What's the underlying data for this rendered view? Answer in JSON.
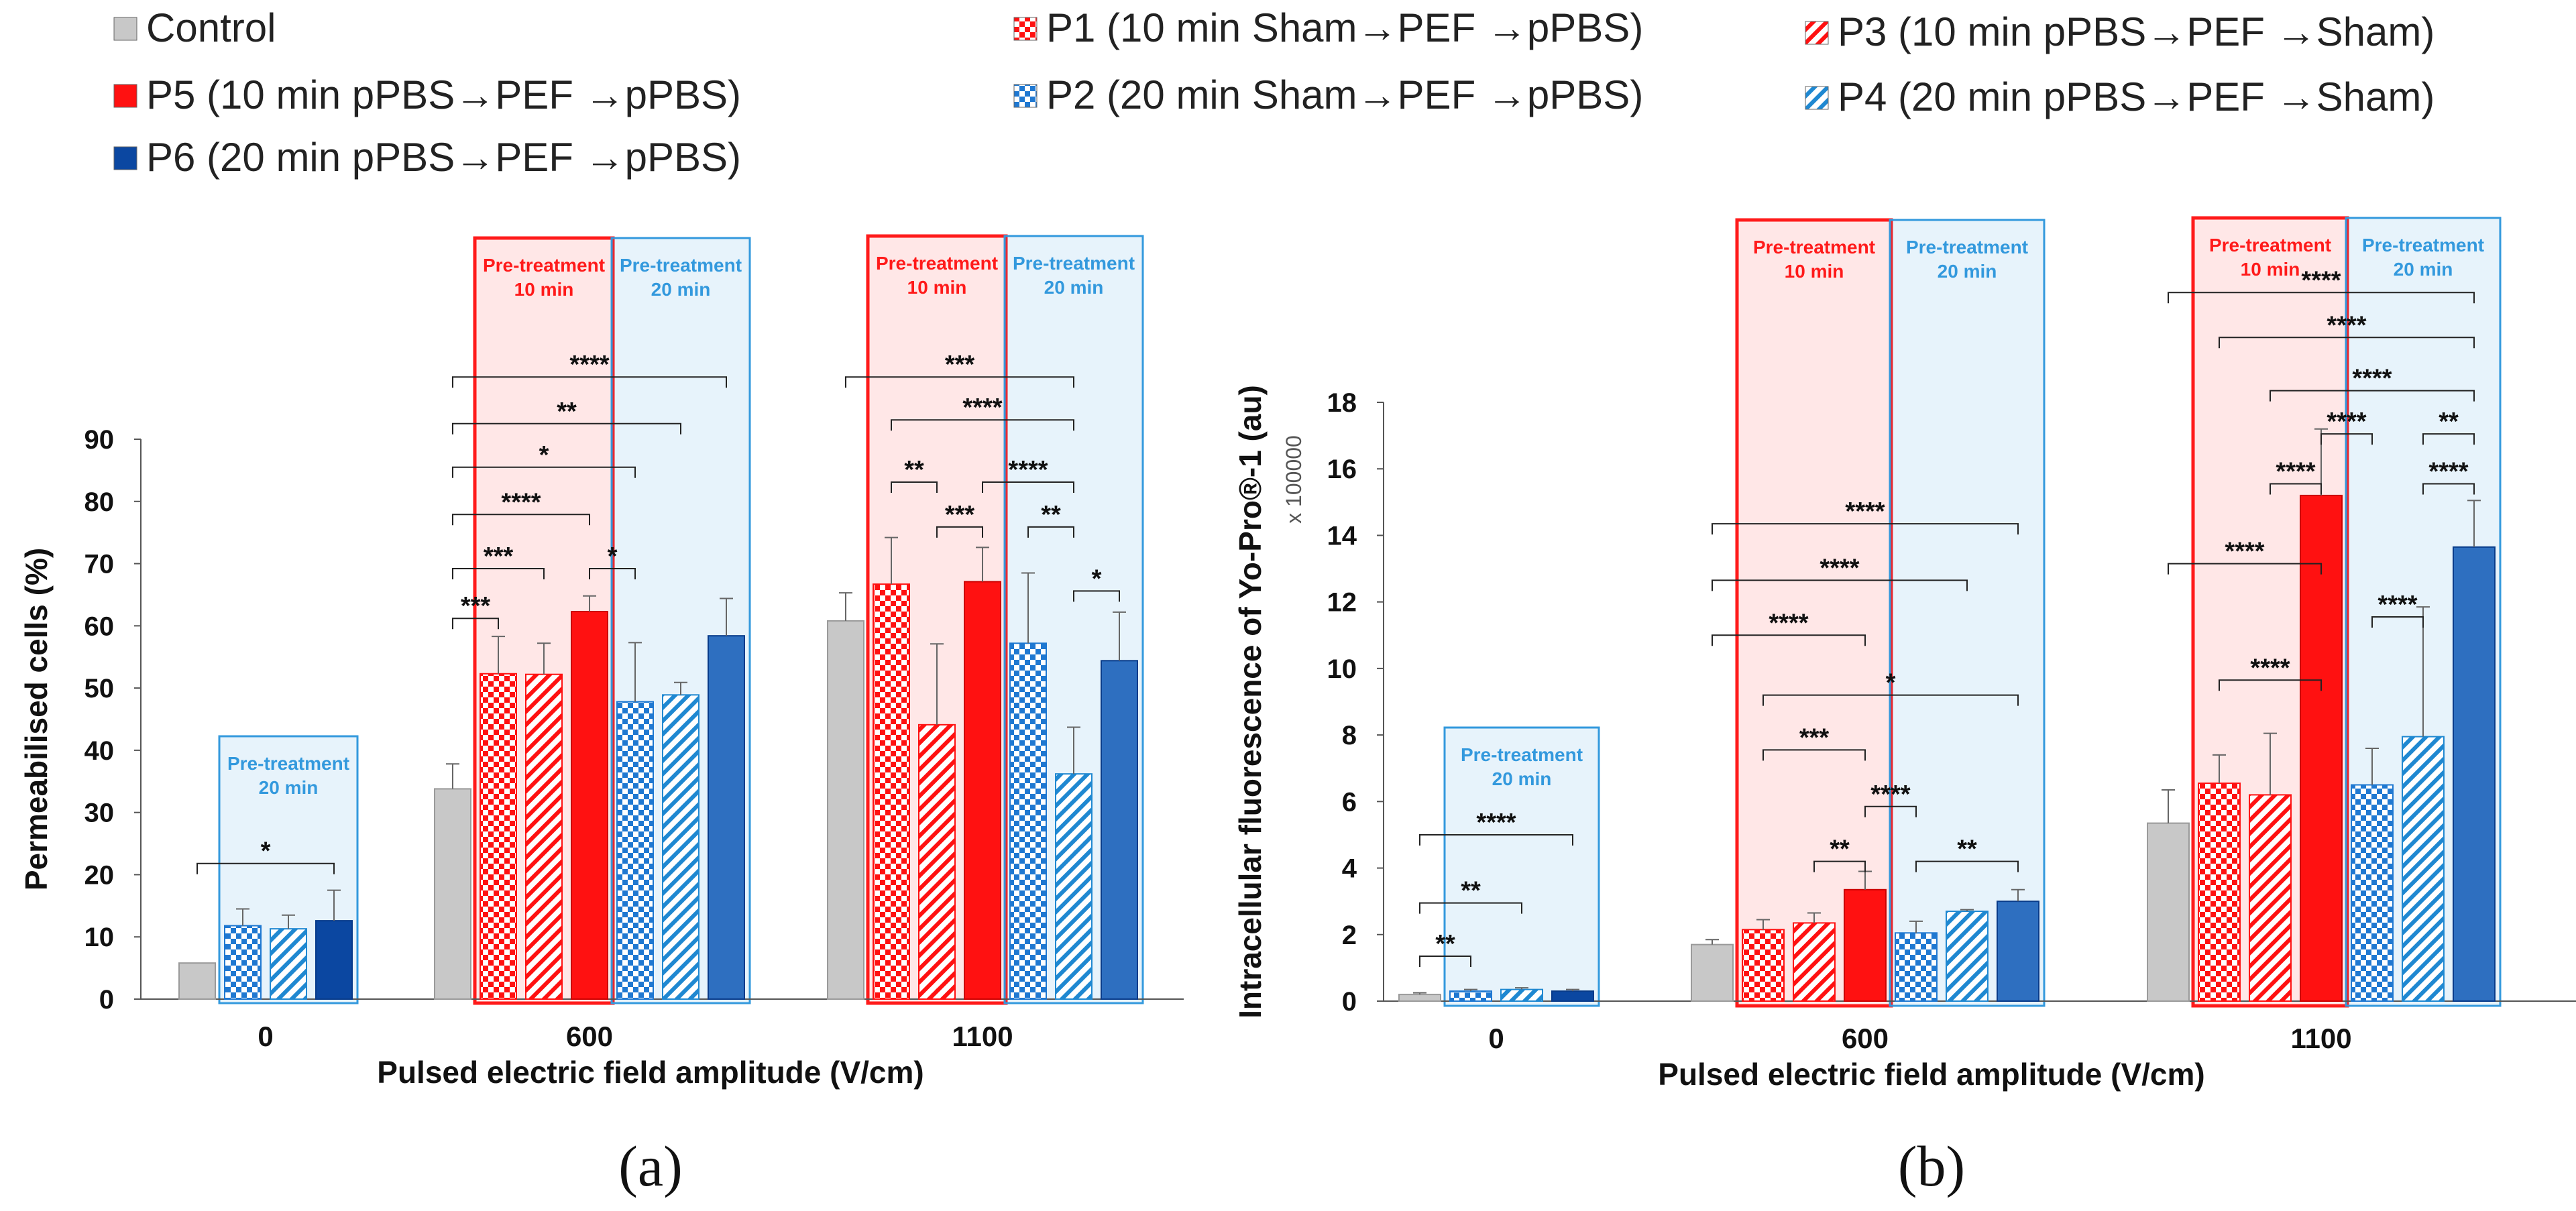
{
  "legend": [
    {
      "name": "Control",
      "color": "#c8c8c8",
      "pattern": "solid"
    },
    {
      "name": "P5 (10 min pPBS→PEF →pPBS)",
      "color": "#ff1111",
      "pattern": "solid"
    },
    {
      "name": "P6 (20 min pPBS→PEF →pPBS)",
      "color": "#0b47a1",
      "pattern": "solid"
    },
    {
      "name": "P1 (10 min Sham→PEF →pPBS)",
      "color": "#ff1111",
      "pattern": "checker"
    },
    {
      "name": "P2 (20 min Sham→PEF →pPBS)",
      "color": "#1f78d1",
      "pattern": "checker"
    },
    {
      "name": "P3 (10 min pPBS→PEF →Sham)",
      "color": "#ff1111",
      "pattern": "hatch"
    },
    {
      "name": "P4 (20 min pPBS→PEF →Sham)",
      "color": "#1f88d1",
      "pattern": "hatch"
    }
  ],
  "pretreatment": {
    "line1": "Pre-treatment",
    "min10": "10 min",
    "min20": "20 min",
    "color10": "#ff1a1a",
    "color20": "#3399dd"
  },
  "chart_data": [
    {
      "type": "bar",
      "panel_label": "(a)",
      "ylabel": "Permeabilised cells (%)",
      "xlabel": "Pulsed electric field amplitude (V/cm)",
      "ylim": [
        0,
        90
      ],
      "yticks": [
        0,
        10,
        20,
        30,
        40,
        50,
        60,
        70,
        80,
        90
      ],
      "scale_note": "",
      "groups": [
        {
          "category": "0",
          "bars": [
            {
              "series": "Control",
              "value": 5.8,
              "err": 0
            },
            {
              "series": "P2",
              "value": 11.8,
              "err": 2.7
            },
            {
              "series": "P4",
              "value": 11.3,
              "err": 2.2
            },
            {
              "series": "P6",
              "value": 12.6,
              "err": 4.9
            }
          ],
          "boxes": [
            {
              "minutes": "20",
              "from": 1,
              "to": 3
            }
          ]
        },
        {
          "category": "600",
          "bars": [
            {
              "series": "Control",
              "value": 33.8,
              "err": 4.0
            },
            {
              "series": "P1",
              "value": 52.3,
              "err": 6.0
            },
            {
              "series": "P3",
              "value": 52.2,
              "err": 5.0
            },
            {
              "series": "P5",
              "value": 62.3,
              "err": 2.5
            },
            {
              "series": "P2",
              "value": 47.8,
              "err": 9.5
            },
            {
              "series": "P4",
              "value": 48.9,
              "err": 2.0
            },
            {
              "series": "P6",
              "value": 58.4,
              "err": 6.0
            }
          ],
          "boxes": [
            {
              "minutes": "10",
              "from": 1,
              "to": 3
            },
            {
              "minutes": "20",
              "from": 4,
              "to": 6
            }
          ]
        },
        {
          "category": "1100",
          "bars": [
            {
              "series": "Control",
              "value": 60.8,
              "err": 4.5
            },
            {
              "series": "P1",
              "value": 66.7,
              "err": 7.5
            },
            {
              "series": "P3",
              "value": 44.1,
              "err": 13.0
            },
            {
              "series": "P5",
              "value": 67.1,
              "err": 5.5
            },
            {
              "series": "P2",
              "value": 57.2,
              "err": 11.3
            },
            {
              "series": "P4",
              "value": 36.2,
              "err": 7.5
            },
            {
              "series": "P6",
              "value": 54.4,
              "err": 7.8
            }
          ],
          "boxes": [
            {
              "minutes": "10",
              "from": 1,
              "to": 3
            },
            {
              "minutes": "20",
              "from": 4,
              "to": 6
            }
          ]
        }
      ],
      "significance": [
        {
          "group": 0,
          "from": 0,
          "to": 3,
          "y": 21.8,
          "label": "*"
        },
        {
          "group": 1,
          "from": 0,
          "to": 1,
          "y": 61.2,
          "label": "***"
        },
        {
          "group": 1,
          "from": 0,
          "to": 2,
          "y": 69.2,
          "label": "***"
        },
        {
          "group": 1,
          "from": 0,
          "to": 3,
          "y": 77.9,
          "label": "****"
        },
        {
          "group": 1,
          "from": 0,
          "to": 4,
          "y": 85.5,
          "label": "*"
        },
        {
          "group": 1,
          "from": 0,
          "to": 5,
          "y": 92.5,
          "label": "**"
        },
        {
          "group": 1,
          "from": 0,
          "to": 6,
          "y": 100.0,
          "label": "****"
        },
        {
          "group": 1,
          "from": 3,
          "to": 4,
          "y": 69.2,
          "label": "*"
        },
        {
          "group": 2,
          "from": 0,
          "to": 5,
          "y": 100.0,
          "label": "***"
        },
        {
          "group": 2,
          "from": 1,
          "to": 5,
          "y": 93.1,
          "label": "****"
        },
        {
          "group": 2,
          "from": 1,
          "to": 2,
          "y": 83.1,
          "label": "**"
        },
        {
          "group": 2,
          "from": 2,
          "to": 3,
          "y": 75.9,
          "label": "***"
        },
        {
          "group": 2,
          "from": 3,
          "to": 5,
          "y": 83.1,
          "label": "****"
        },
        {
          "group": 2,
          "from": 4,
          "to": 5,
          "y": 75.9,
          "label": "**"
        },
        {
          "group": 2,
          "from": 5,
          "to": 6,
          "y": 65.6,
          "label": "*"
        }
      ]
    },
    {
      "type": "bar",
      "panel_label": "(b)",
      "ylabel": "Intracellular fluorescence of Yo-Pro®-1 (au)",
      "xlabel": "Pulsed electric field amplitude (V/cm)",
      "ylim": [
        0,
        18
      ],
      "yticks": [
        0,
        2,
        4,
        6,
        8,
        10,
        12,
        14,
        16,
        18
      ],
      "scale_note": "x 100000",
      "groups": [
        {
          "category": "0",
          "bars": [
            {
              "series": "Control",
              "value": 0.2,
              "err": 0.05
            },
            {
              "series": "P2",
              "value": 0.3,
              "err": 0.05
            },
            {
              "series": "P4",
              "value": 0.35,
              "err": 0.05
            },
            {
              "series": "P6",
              "value": 0.3,
              "err": 0.05
            }
          ],
          "boxes": [
            {
              "minutes": "20",
              "from": 1,
              "to": 3
            }
          ]
        },
        {
          "category": "600",
          "bars": [
            {
              "series": "Control",
              "value": 1.7,
              "err": 0.15
            },
            {
              "series": "P1",
              "value": 2.15,
              "err": 0.3
            },
            {
              "series": "P3",
              "value": 2.35,
              "err": 0.3
            },
            {
              "series": "P5",
              "value": 3.35,
              "err": 0.55
            },
            {
              "series": "P2",
              "value": 2.05,
              "err": 0.35
            },
            {
              "series": "P4",
              "value": 2.7,
              "err": 0.05
            },
            {
              "series": "P6",
              "value": 3.0,
              "err": 0.35
            }
          ],
          "boxes": [
            {
              "minutes": "10",
              "from": 1,
              "to": 3
            },
            {
              "minutes": "20",
              "from": 4,
              "to": 6
            }
          ]
        },
        {
          "category": "1100",
          "bars": [
            {
              "series": "Control",
              "value": 5.35,
              "err": 1.0
            },
            {
              "series": "P1",
              "value": 6.55,
              "err": 0.85
            },
            {
              "series": "P3",
              "value": 6.2,
              "err": 1.85
            },
            {
              "series": "P5",
              "value": 15.2,
              "err": 2.0
            },
            {
              "series": "P2",
              "value": 6.5,
              "err": 1.1
            },
            {
              "series": "P4",
              "value": 7.95,
              "err": 3.9
            },
            {
              "series": "P6",
              "value": 13.65,
              "err": 1.4
            }
          ],
          "boxes": [
            {
              "minutes": "10",
              "from": 1,
              "to": 3
            },
            {
              "minutes": "20",
              "from": 4,
              "to": 6
            }
          ]
        }
      ],
      "significance": [
        {
          "group": 0,
          "from": 0,
          "to": 1,
          "y": 1.35,
          "label": "**"
        },
        {
          "group": 0,
          "from": 0,
          "to": 2,
          "y": 2.95,
          "label": "**"
        },
        {
          "group": 0,
          "from": 0,
          "to": 3,
          "y": 5.0,
          "label": "****"
        },
        {
          "group": 1,
          "from": 0,
          "to": 3,
          "y": 11.0,
          "label": "****"
        },
        {
          "group": 1,
          "from": 0,
          "to": 5,
          "y": 12.65,
          "label": "****"
        },
        {
          "group": 1,
          "from": 0,
          "to": 6,
          "y": 14.35,
          "label": "****"
        },
        {
          "group": 1,
          "from": 1,
          "to": 6,
          "y": 9.2,
          "label": "*"
        },
        {
          "group": 1,
          "from": 1,
          "to": 3,
          "y": 7.55,
          "label": "***"
        },
        {
          "group": 1,
          "from": 2,
          "to": 3,
          "y": 4.2,
          "label": "**"
        },
        {
          "group": 1,
          "from": 3,
          "to": 4,
          "y": 5.85,
          "label": "****"
        },
        {
          "group": 1,
          "from": 4,
          "to": 6,
          "y": 4.2,
          "label": "**"
        },
        {
          "group": 2,
          "from": 0,
          "to": 3,
          "y": 13.15,
          "label": "****"
        },
        {
          "group": 2,
          "from": 1,
          "to": 3,
          "y": 9.65,
          "label": "****"
        },
        {
          "group": 2,
          "from": 2,
          "to": 3,
          "y": 15.55,
          "label": "****"
        },
        {
          "group": 2,
          "from": 3,
          "to": 4,
          "y": 17.05,
          "label": "****"
        },
        {
          "group": 2,
          "from": 4,
          "to": 5,
          "y": 11.55,
          "label": "****"
        },
        {
          "group": 2,
          "from": 5,
          "to": 6,
          "y": 15.55,
          "label": "****"
        },
        {
          "group": 2,
          "from": 2,
          "to": 6,
          "y": 18.35,
          "label": "****"
        },
        {
          "group": 2,
          "from": 1,
          "to": 6,
          "y": 19.95,
          "label": "****"
        },
        {
          "group": 2,
          "from": 0,
          "to": 6,
          "y": 21.3,
          "label": "****"
        },
        {
          "group": 2,
          "from": 5,
          "to": 6,
          "y": 17.05,
          "label": "**"
        }
      ]
    }
  ]
}
